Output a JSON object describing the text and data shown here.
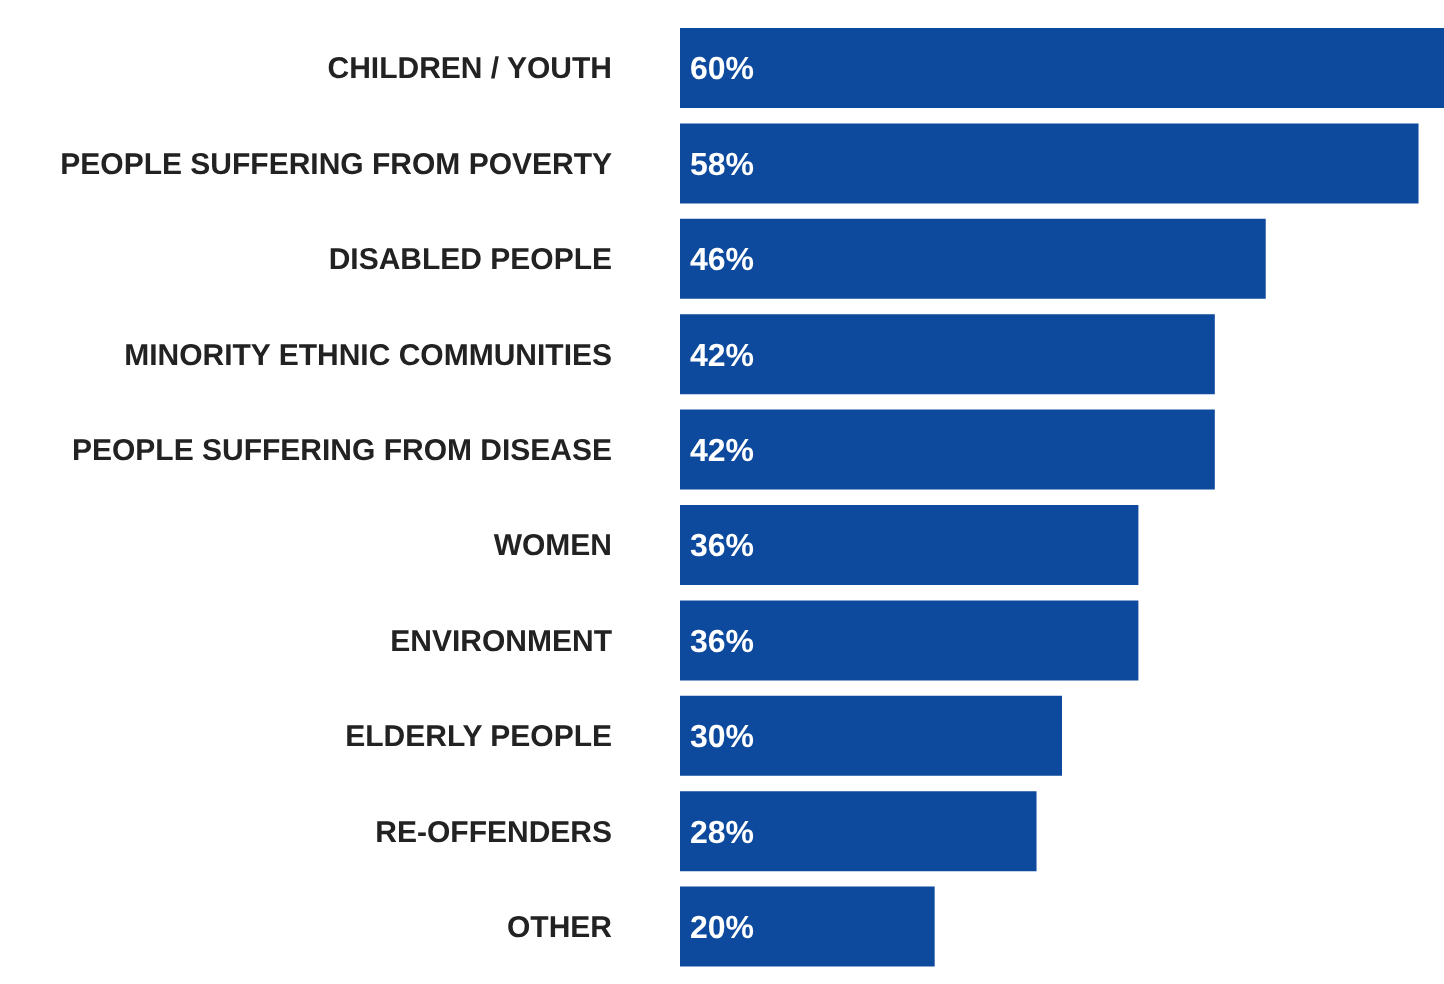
{
  "chart_data": {
    "type": "bar",
    "orientation": "horizontal",
    "categories": [
      "CHILDREN / YOUTH",
      "PEOPLE SUFFERING FROM POVERTY",
      "DISABLED PEOPLE",
      "MINORITY ETHNIC COMMUNITIES",
      "PEOPLE SUFFERING FROM DISEASE",
      "WOMEN",
      "ENVIRONMENT",
      "ELDERLY PEOPLE",
      "RE-OFFENDERS",
      "OTHER"
    ],
    "values": [
      60,
      58,
      46,
      42,
      42,
      36,
      36,
      30,
      28,
      20
    ],
    "value_labels": [
      "60%",
      "58%",
      "46%",
      "42%",
      "42%",
      "36%",
      "36%",
      "30%",
      "28%",
      "20%"
    ],
    "color": "#0d4a9e",
    "grid": false,
    "legend": false
  }
}
